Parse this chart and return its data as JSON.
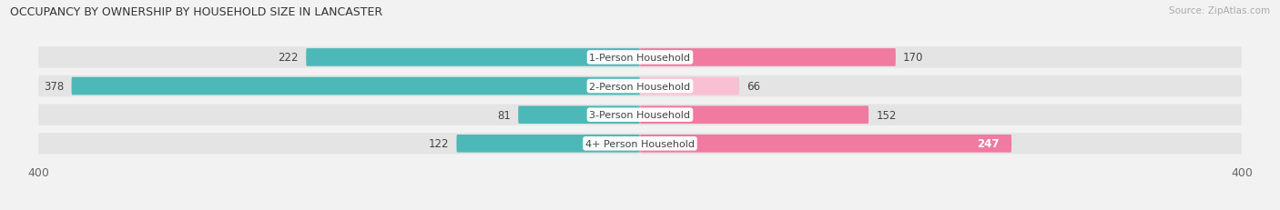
{
  "title": "OCCUPANCY BY OWNERSHIP BY HOUSEHOLD SIZE IN LANCASTER",
  "source": "Source: ZipAtlas.com",
  "categories": [
    "1-Person Household",
    "2-Person Household",
    "3-Person Household",
    "4+ Person Household"
  ],
  "owner_values": [
    222,
    378,
    81,
    122
  ],
  "renter_values": [
    170,
    66,
    152,
    247
  ],
  "owner_color": "#4db8b8",
  "renter_color": "#f07aa0",
  "renter_color_light": "#f9c0d3",
  "axis_max": 400,
  "background_color": "#f2f2f2",
  "bar_bg_color": "#e4e4e4",
  "title_fontsize": 9,
  "source_fontsize": 7.5,
  "label_fontsize": 8.5,
  "cat_fontsize": 8.0
}
